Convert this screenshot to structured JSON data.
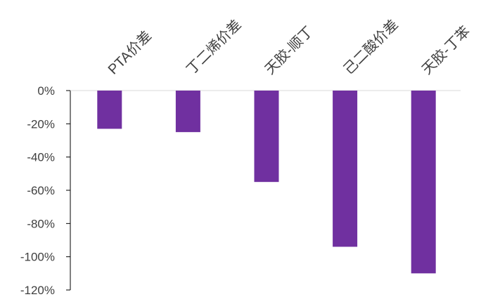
{
  "chart_data": {
    "type": "bar",
    "title": "",
    "xlabel": "",
    "ylabel": "",
    "categories": [
      "PTA价差",
      "丁二烯价差",
      "天胶-顺丁",
      "己二酸价差",
      "天胶-丁苯"
    ],
    "series": [
      {
        "values": [
          -23,
          -25,
          -55,
          -94,
          -110
        ]
      }
    ],
    "value_format": "percent",
    "ylim": [
      -120,
      0
    ],
    "yticks": [
      0,
      -20,
      -40,
      -60,
      -80,
      -100,
      -120
    ],
    "ytick_labels": [
      "0%",
      "-20%",
      "-40%",
      "-60%",
      "-80%",
      "-100%",
      "-120%"
    ],
    "grid": false,
    "legend": "none",
    "colors": {
      "bar": "#7030A0",
      "axis": "#000000",
      "zero_line": "#d9d9d9",
      "text": "#404040"
    }
  }
}
